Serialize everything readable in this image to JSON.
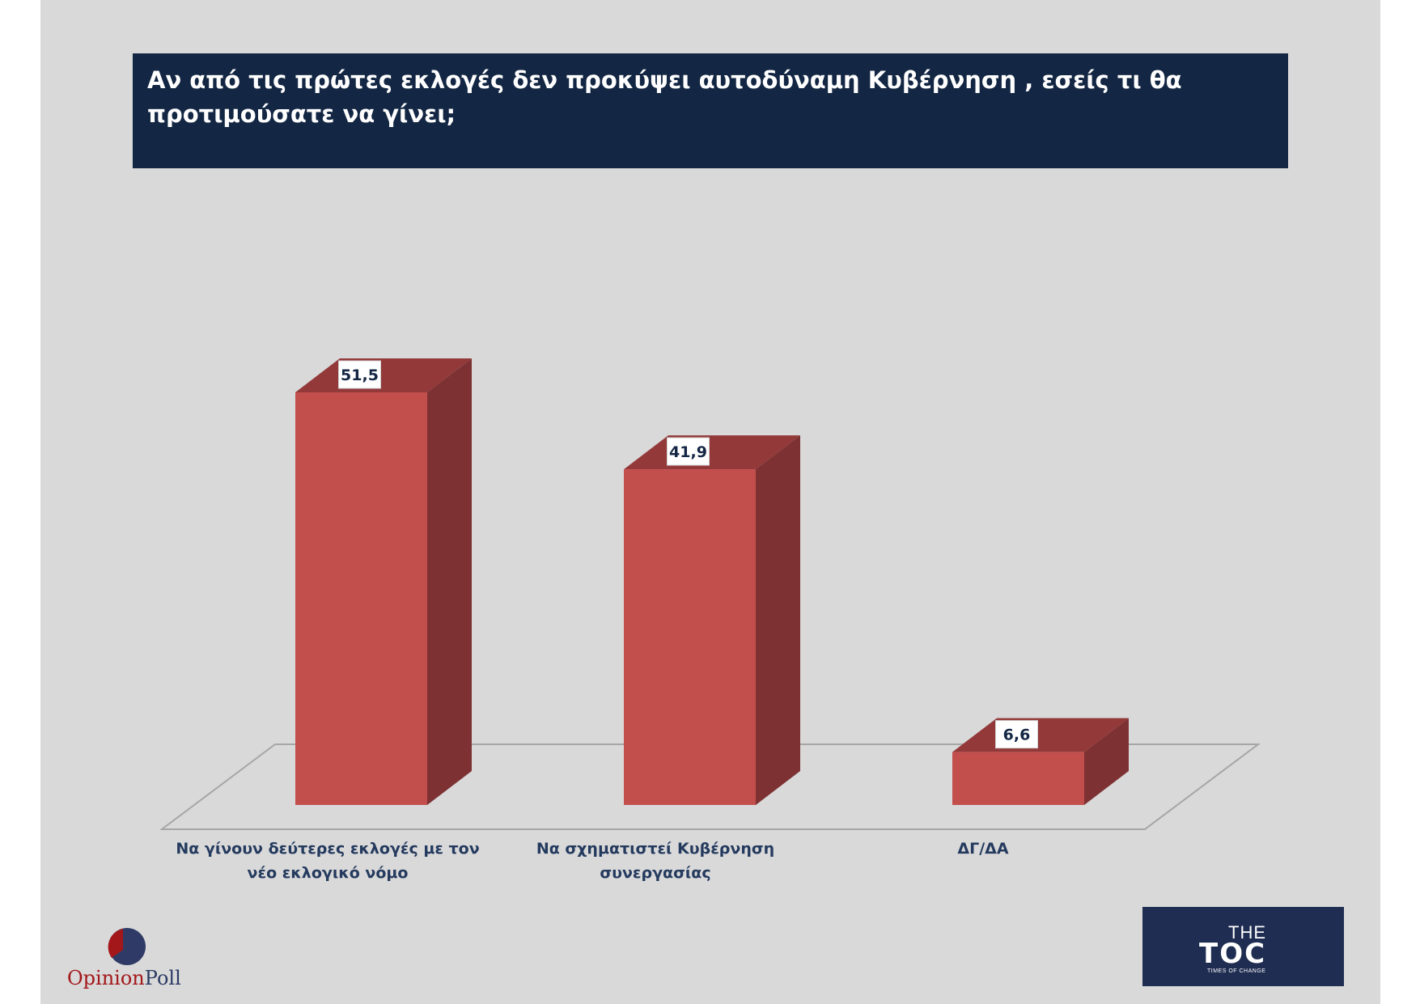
{
  "header": {
    "title": "Αν από τις πρώτες εκλογές δεν προκύψει αυτοδύναμη Κυβέρνηση , εσείς τι θα προτιμούσατε να γίνει;"
  },
  "chart_data": {
    "type": "bar",
    "title": "Αν από τις πρώτες εκλογές δεν προκύψει αυτοδύναμη Κυβέρνηση , εσείς τι θα προτιμούσατε να γίνει;",
    "categories": [
      "Να γίνουν δεύτερες εκλογές με τον νέο εκλογικό νόμο",
      "Να σχηματιστεί Κυβέρνηση συνεργασίας",
      "ΔΓ/ΔΑ"
    ],
    "category_lines": [
      [
        "Να γίνουν δεύτερες εκλογές με τον",
        "νέο εκλογικό νόμο"
      ],
      [
        "Να σχηματιστεί Κυβέρνηση",
        "συνεργασίας"
      ],
      [
        "ΔΓ/ΔΑ"
      ]
    ],
    "values": [
      51.5,
      41.9,
      6.6
    ],
    "data_labels": [
      "51,5",
      "41,9",
      "6,6"
    ],
    "ylim": [
      0,
      51.5
    ],
    "grid": false,
    "legend": "none",
    "style": "3d",
    "colors": {
      "bar_front": "#c34f4d",
      "bar_side": "#7d3132",
      "bar_top": "#93393a",
      "floor_line": "#a6a6a6"
    }
  },
  "logos": {
    "opinionpoll": {
      "part1": "Opinion",
      "part2": "Poll"
    },
    "thetoc": {
      "the": "THE",
      "main": "TOC",
      "sub": "TIMES OF CHANGE"
    }
  }
}
